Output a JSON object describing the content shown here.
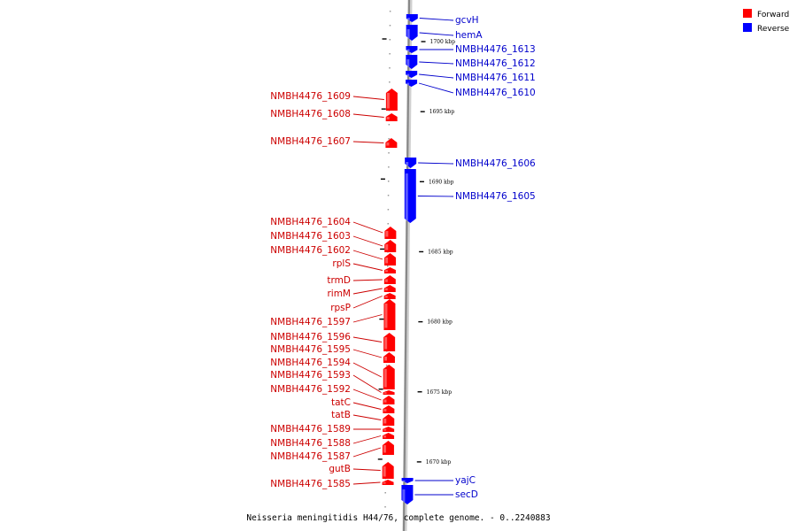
{
  "colors": {
    "forward": "#ff0000",
    "reverse": "#0000ff",
    "forward_label": "#cc0000",
    "reverse_label": "#0000cc",
    "axis": "#888888"
  },
  "legend": [
    {
      "id": "forward",
      "label": "Forward",
      "color": "#ff0000"
    },
    {
      "id": "reverse",
      "label": "Reverse",
      "color": "#0000ff"
    }
  ],
  "caption": "Neisseria meningitidis H44/76, complete genome. - 0..2240883",
  "ticks": [
    {
      "kbp": 1700,
      "label": "1700 kbp"
    },
    {
      "kbp": 1695,
      "label": "1695 kbp"
    },
    {
      "kbp": 1690,
      "label": "1690 kbp"
    },
    {
      "kbp": 1685,
      "label": "1685 kbp"
    },
    {
      "kbp": 1680,
      "label": "1680 kbp"
    },
    {
      "kbp": 1675,
      "label": "1675 kbp"
    },
    {
      "kbp": 1670,
      "label": "1670 kbp"
    }
  ],
  "genes_reverse": [
    {
      "name": "gcvH"
    },
    {
      "name": "hemA"
    },
    {
      "name": "NMBH4476_1613"
    },
    {
      "name": "NMBH4476_1612"
    },
    {
      "name": "NMBH4476_1611"
    },
    {
      "name": "NMBH4476_1610"
    },
    {
      "name": "NMBH4476_1606"
    },
    {
      "name": "NMBH4476_1605"
    },
    {
      "name": "yajC"
    },
    {
      "name": "secD"
    }
  ],
  "genes_forward": [
    {
      "name": "NMBH4476_1609"
    },
    {
      "name": "NMBH4476_1608"
    },
    {
      "name": "NMBH4476_1607"
    },
    {
      "name": "NMBH4476_1604"
    },
    {
      "name": "NMBH4476_1603"
    },
    {
      "name": "NMBH4476_1602"
    },
    {
      "name": "rplS"
    },
    {
      "name": "trmD"
    },
    {
      "name": "rimM"
    },
    {
      "name": "rpsP"
    },
    {
      "name": "NMBH4476_1597"
    },
    {
      "name": "NMBH4476_1596"
    },
    {
      "name": "NMBH4476_1595"
    },
    {
      "name": "NMBH4476_1594"
    },
    {
      "name": "NMBH4476_1593"
    },
    {
      "name": "NMBH4476_1592"
    },
    {
      "name": "tatC"
    },
    {
      "name": "tatB"
    },
    {
      "name": "NMBH4476_1589"
    },
    {
      "name": "NMBH4476_1588"
    },
    {
      "name": "NMBH4476_1587"
    },
    {
      "name": "gutB"
    },
    {
      "name": "NMBH4476_1585"
    }
  ]
}
